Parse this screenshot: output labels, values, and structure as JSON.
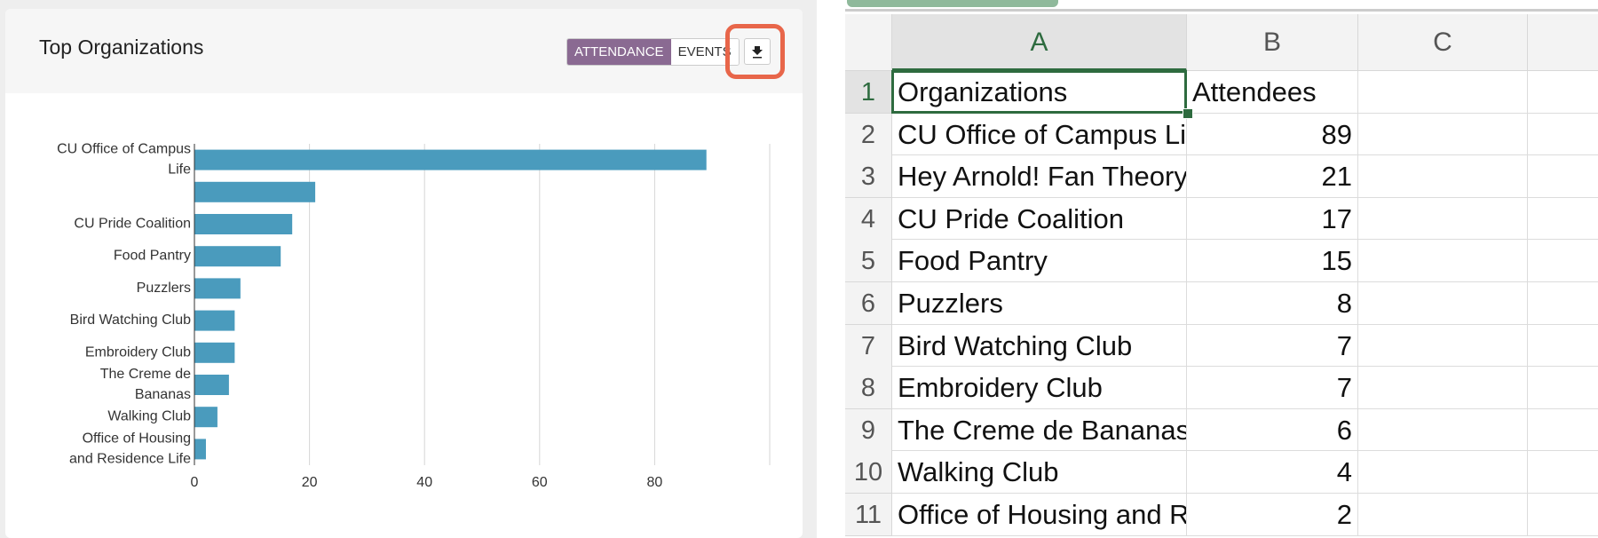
{
  "panel": {
    "title": "Top Organizations",
    "toggle": [
      "ATTENDANCE",
      "EVENTS"
    ]
  },
  "chart_data": {
    "type": "hbar",
    "categories": [
      "CU Office of Campus Life",
      null,
      "CU Pride Coalition",
      "Food Pantry",
      "Puzzlers",
      "Bird Watching Club",
      "Embroidery Club",
      "The Creme de Bananas",
      "Walking Club",
      "Office of Housing and Residence Life"
    ],
    "values": [
      89,
      21,
      17,
      15,
      8,
      7,
      7,
      6,
      4,
      2
    ],
    "color": "#4a9bbd",
    "xlim": [
      0,
      100
    ],
    "xticks": [
      0,
      20,
      40,
      60,
      80
    ],
    "grid": true
  },
  "spreadsheet": {
    "columns": [
      "A",
      "B",
      "C"
    ],
    "row_numbers": [
      "1",
      "2",
      "3",
      "4",
      "5",
      "6",
      "7",
      "8",
      "9",
      "10",
      "11"
    ],
    "rows": [
      [
        "Organizations",
        "Attendees"
      ],
      [
        "CU Office of Campus Li",
        89
      ],
      [
        "Hey Arnold! Fan Theory",
        21
      ],
      [
        "CU Pride Coalition",
        17
      ],
      [
        "Food Pantry",
        15
      ],
      [
        "Puzzlers",
        8
      ],
      [
        "Bird Watching Club",
        7
      ],
      [
        "Embroidery Club",
        7
      ],
      [
        "The Creme de Bananas",
        6
      ],
      [
        "Walking Club",
        4
      ],
      [
        "Office of Housing and R",
        2
      ]
    ]
  }
}
